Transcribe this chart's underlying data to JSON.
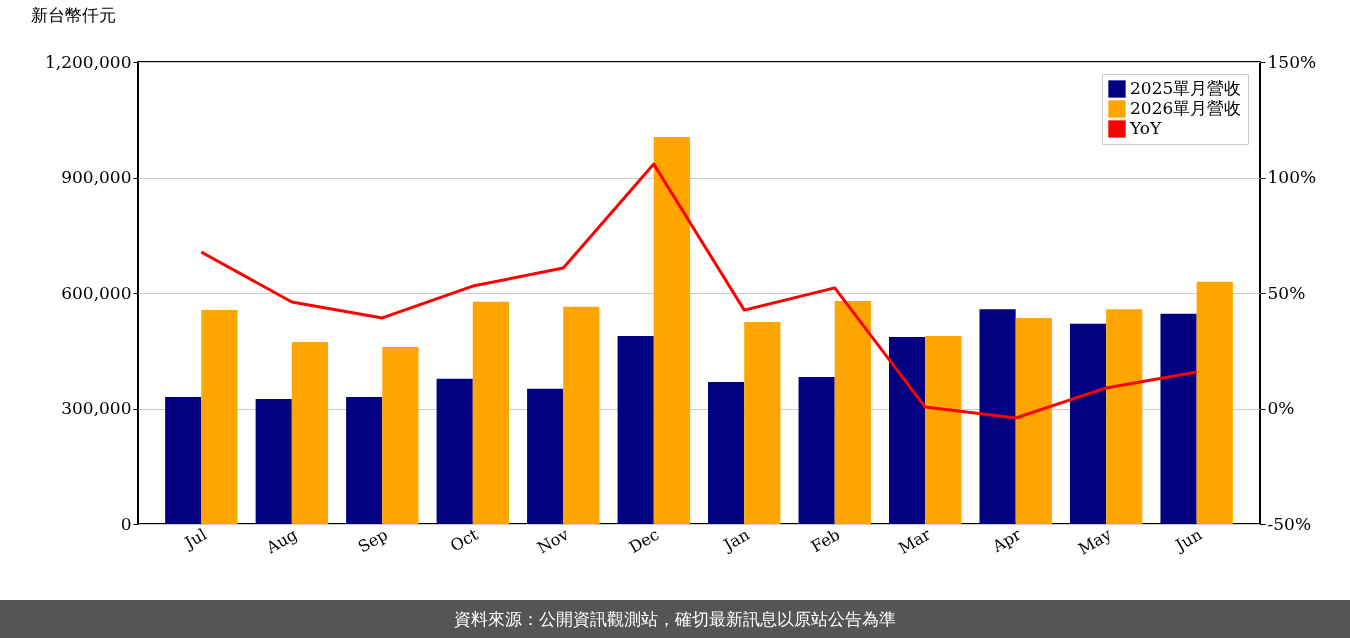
{
  "chart_data": {
    "type": "bar",
    "ylabel": "新台幣仟元",
    "categories": [
      "Jul",
      "Aug",
      "Sep",
      "Oct",
      "Nov",
      "Dec",
      "Jan",
      "Feb",
      "Mar",
      "Apr",
      "May",
      "Jun"
    ],
    "series": [
      {
        "name": "2025單月營收",
        "color": "#000080",
        "values": [
          330000,
          325000,
          330000,
          377000,
          351000,
          488000,
          369000,
          382000,
          486000,
          558000,
          520000,
          546000
        ]
      },
      {
        "name": "2026單月營收",
        "color": "#ffa500",
        "values": [
          556000,
          473000,
          460000,
          577000,
          564000,
          1005000,
          525000,
          579000,
          488000,
          535000,
          558000,
          629000
        ]
      },
      {
        "name": "YoY",
        "type": "line",
        "axis": "y2",
        "color": "#ff0000",
        "values": [
          67.7,
          46.1,
          39.2,
          53.0,
          60.8,
          105.8,
          42.6,
          52.2,
          0.6,
          -4.1,
          8.9,
          15.8
        ]
      }
    ],
    "ylim": [
      0,
      1200000
    ],
    "yticks": [
      {
        "value": 0,
        "label": "0"
      },
      {
        "value": 300000,
        "label": "300,000"
      },
      {
        "value": 600000,
        "label": "600,000"
      },
      {
        "value": 900000,
        "label": "900,000"
      },
      {
        "value": 1200000,
        "label": "1,200,000"
      }
    ],
    "y2lim": [
      -50,
      150
    ],
    "y2ticks": [
      {
        "value": -50,
        "label": "-50%"
      },
      {
        "value": 0,
        "label": "0%"
      },
      {
        "value": 50,
        "label": "50%"
      },
      {
        "value": 100,
        "label": "100%"
      },
      {
        "value": 150,
        "label": "150%"
      }
    ],
    "grid": "y",
    "legend": "top right",
    "annotations": [
      "資料來源：公開資訊觀測站，確切最新訊息以原站公告為準"
    ]
  }
}
